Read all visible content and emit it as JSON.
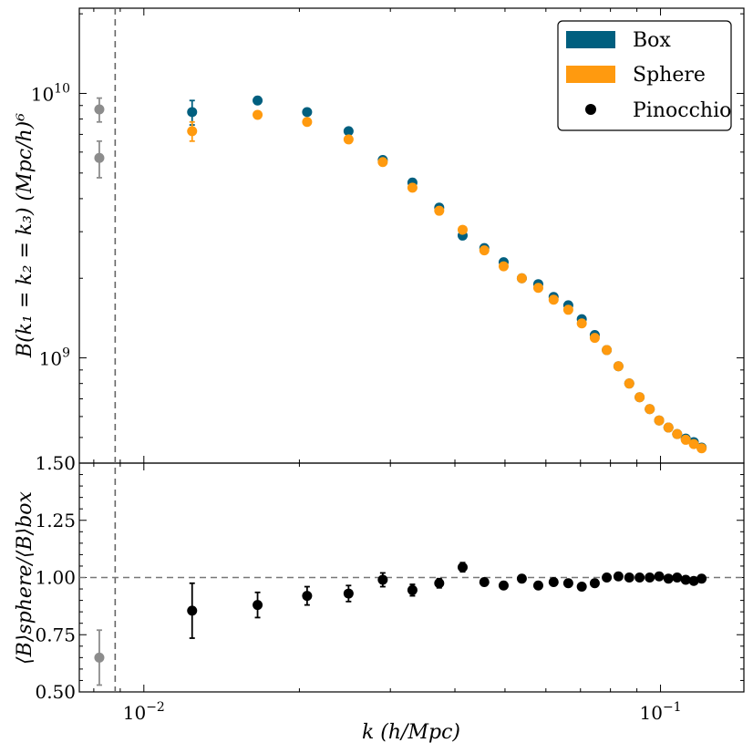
{
  "chart_data": [
    {
      "type": "scatter",
      "panel": "top",
      "xscale": "log",
      "yscale": "log",
      "xlim": [
        0.0075,
        0.145
      ],
      "ylim": [
        400000000,
        21000000000
      ],
      "ylabel": "B(k₁ = k₂ = k₃) (Mpc/h)⁶",
      "yticks": [
        {
          "value": 1000000000,
          "base": "10",
          "exp": "9"
        },
        {
          "value": 10000000000,
          "base": "10",
          "exp": "10"
        }
      ],
      "legend": {
        "position": "top-right",
        "entries": [
          {
            "name": "Box",
            "color": "#005f7f",
            "marker": "patch"
          },
          {
            "name": "Sphere",
            "color": "#ff9a0f",
            "marker": "patch"
          },
          {
            "name": "Pinocchio",
            "color": "#000000",
            "marker": "dot"
          }
        ]
      },
      "vline_k": 0.0088,
      "series": [
        {
          "name": "Box",
          "color": "#005f7f",
          "points": [
            {
              "x": 0.0124,
              "y": 8500000000,
              "err": 900000000
            },
            {
              "x": 0.0166,
              "y": 9400000000
            },
            {
              "x": 0.0207,
              "y": 8500000000
            },
            {
              "x": 0.0249,
              "y": 7200000000
            },
            {
              "x": 0.029,
              "y": 5600000000
            },
            {
              "x": 0.0331,
              "y": 4600000000
            },
            {
              "x": 0.0373,
              "y": 3700000000
            },
            {
              "x": 0.0414,
              "y": 2900000000
            },
            {
              "x": 0.0456,
              "y": 2600000000
            },
            {
              "x": 0.0497,
              "y": 2300000000
            },
            {
              "x": 0.0539,
              "y": 2000000000
            },
            {
              "x": 0.058,
              "y": 1900000000
            },
            {
              "x": 0.0621,
              "y": 1700000000
            },
            {
              "x": 0.0663,
              "y": 1580000000
            },
            {
              "x": 0.0704,
              "y": 1400000000
            },
            {
              "x": 0.0746,
              "y": 1220000000
            },
            {
              "x": 0.0787,
              "y": 1070000000
            },
            {
              "x": 0.0829,
              "y": 930000000
            },
            {
              "x": 0.087,
              "y": 800000000
            },
            {
              "x": 0.0911,
              "y": 710000000
            },
            {
              "x": 0.0953,
              "y": 640000000
            },
            {
              "x": 0.0994,
              "y": 580000000
            },
            {
              "x": 0.1036,
              "y": 545000000
            },
            {
              "x": 0.1077,
              "y": 515000000
            },
            {
              "x": 0.1119,
              "y": 495000000
            },
            {
              "x": 0.116,
              "y": 480000000
            },
            {
              "x": 0.1201,
              "y": 458000000
            }
          ]
        },
        {
          "name": "Sphere",
          "color": "#ff9a0f",
          "points": [
            {
              "x": 0.0124,
              "y": 7200000000,
              "err": 600000000
            },
            {
              "x": 0.0166,
              "y": 8300000000
            },
            {
              "x": 0.0207,
              "y": 7800000000
            },
            {
              "x": 0.0249,
              "y": 6700000000
            },
            {
              "x": 0.029,
              "y": 5500000000
            },
            {
              "x": 0.0331,
              "y": 4400000000
            },
            {
              "x": 0.0373,
              "y": 3600000000
            },
            {
              "x": 0.0414,
              "y": 3050000000
            },
            {
              "x": 0.0456,
              "y": 2550000000
            },
            {
              "x": 0.0497,
              "y": 2220000000
            },
            {
              "x": 0.0539,
              "y": 2000000000
            },
            {
              "x": 0.058,
              "y": 1840000000
            },
            {
              "x": 0.0621,
              "y": 1660000000
            },
            {
              "x": 0.0663,
              "y": 1520000000
            },
            {
              "x": 0.0704,
              "y": 1350000000
            },
            {
              "x": 0.0746,
              "y": 1190000000
            },
            {
              "x": 0.0787,
              "y": 1070000000
            },
            {
              "x": 0.0829,
              "y": 930000000
            },
            {
              "x": 0.087,
              "y": 800000000
            },
            {
              "x": 0.0911,
              "y": 710000000
            },
            {
              "x": 0.0953,
              "y": 640000000
            },
            {
              "x": 0.0994,
              "y": 580000000
            },
            {
              "x": 0.1036,
              "y": 545000000
            },
            {
              "x": 0.1077,
              "y": 515000000
            },
            {
              "x": 0.1119,
              "y": 490000000
            },
            {
              "x": 0.116,
              "y": 472000000
            },
            {
              "x": 0.1201,
              "y": 455000000
            }
          ]
        },
        {
          "name": "Pinocchio (grey, outside range)",
          "color": "#8c8c8c",
          "points": [
            {
              "x": 0.0082,
              "y": 8700000000,
              "err": 900000000
            },
            {
              "x": 0.0082,
              "y": 5700000000,
              "err": 900000000
            }
          ]
        }
      ]
    },
    {
      "type": "scatter",
      "panel": "bottom",
      "xscale": "log",
      "yscale": "linear",
      "xlim": [
        0.0075,
        0.145
      ],
      "ylim": [
        0.5,
        1.5
      ],
      "xlabel": "k (h/Mpc)",
      "ylabel": "⟨B⟩sphere/⟨B⟩box",
      "yticks": [
        "0.50",
        "0.75",
        "1.00",
        "1.25",
        "1.50"
      ],
      "xticks": [
        {
          "value": 0.01,
          "base": "10",
          "exp": "−2"
        },
        {
          "value": 0.1,
          "base": "10",
          "exp": "−1"
        }
      ],
      "hline": 1.0,
      "vline_k": 0.0088,
      "series": [
        {
          "name": "Pinocchio",
          "color": "#000000",
          "points": [
            {
              "x": 0.0124,
              "y": 0.855,
              "err": 0.12
            },
            {
              "x": 0.0166,
              "y": 0.88,
              "err": 0.055
            },
            {
              "x": 0.0207,
              "y": 0.92,
              "err": 0.04
            },
            {
              "x": 0.0249,
              "y": 0.93,
              "err": 0.035
            },
            {
              "x": 0.029,
              "y": 0.99,
              "err": 0.03
            },
            {
              "x": 0.0331,
              "y": 0.945,
              "err": 0.025
            },
            {
              "x": 0.0373,
              "y": 0.975,
              "err": 0.02
            },
            {
              "x": 0.0414,
              "y": 1.045,
              "err": 0.02
            },
            {
              "x": 0.0456,
              "y": 0.98,
              "err": 0.015
            },
            {
              "x": 0.0497,
              "y": 0.965
            },
            {
              "x": 0.0539,
              "y": 0.995
            },
            {
              "x": 0.058,
              "y": 0.965
            },
            {
              "x": 0.0621,
              "y": 0.98
            },
            {
              "x": 0.0663,
              "y": 0.975
            },
            {
              "x": 0.0704,
              "y": 0.96
            },
            {
              "x": 0.0746,
              "y": 0.975
            },
            {
              "x": 0.0787,
              "y": 1.0
            },
            {
              "x": 0.0829,
              "y": 1.005
            },
            {
              "x": 0.087,
              "y": 1.0
            },
            {
              "x": 0.0911,
              "y": 1.0
            },
            {
              "x": 0.0953,
              "y": 1.0
            },
            {
              "x": 0.0994,
              "y": 1.005
            },
            {
              "x": 0.1036,
              "y": 0.995
            },
            {
              "x": 0.1077,
              "y": 1.0
            },
            {
              "x": 0.1119,
              "y": 0.99
            },
            {
              "x": 0.116,
              "y": 0.985
            },
            {
              "x": 0.1201,
              "y": 0.995
            }
          ]
        },
        {
          "name": "Pinocchio (grey, outside range)",
          "color": "#8c8c8c",
          "points": [
            {
              "x": 0.0082,
              "y": 0.65,
              "err": 0.12
            }
          ]
        }
      ]
    }
  ]
}
